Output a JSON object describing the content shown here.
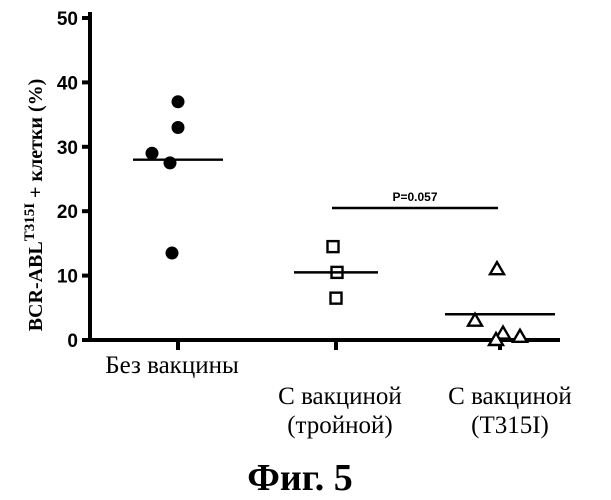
{
  "chart_data": {
    "type": "scatter",
    "ylabel_main": "BCR-ABL",
    "ylabel_sup": "T315I",
    "ylabel_rest": " + клетки (%)",
    "ylim": [
      0,
      50
    ],
    "yticks": [
      0,
      10,
      20,
      30,
      40,
      50
    ],
    "grid": false,
    "groups": [
      {
        "label_lines": [
          "Без вакцины"
        ],
        "marker": "filled-circle",
        "values": [
          37,
          33,
          29,
          27.5,
          13.5
        ],
        "mean": 28
      },
      {
        "label_lines": [
          "С вакциной",
          "(тройной)"
        ],
        "marker": "open-square",
        "values": [
          14.5,
          10.5,
          6.5
        ],
        "mean": 10.5
      },
      {
        "label_lines": [
          "С вакциной",
          "(T315I)"
        ],
        "marker": "open-triangle",
        "values": [
          11,
          3,
          1,
          0.5,
          0
        ],
        "mean": 4
      }
    ],
    "comparison": {
      "groups": [
        1,
        2
      ],
      "label": "P=0.057"
    }
  },
  "figure_caption": "Фиг. 5"
}
